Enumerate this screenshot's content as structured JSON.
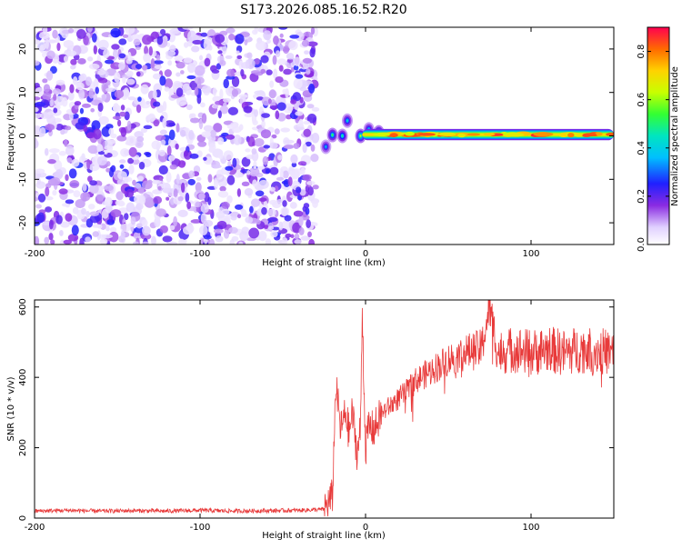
{
  "title": "S173.2026.085.16.52.R20",
  "chart_data": [
    {
      "type": "heatmap",
      "name": "spectrogram",
      "xlabel": "Height of straight line (km)",
      "ylabel": "Frequency (Hz)",
      "xlim": [
        -200,
        150
      ],
      "ylim": [
        -25,
        25
      ],
      "xticks": [
        -200,
        -100,
        0,
        100
      ],
      "xtick_labels": [
        "-200",
        "-100",
        "0",
        "100"
      ],
      "yticks": [
        -20,
        -10,
        0,
        10,
        20
      ],
      "ytick_labels": [
        "-20",
        "-10",
        "0",
        "10",
        "20"
      ],
      "noise_region_x": [
        -200,
        -30
      ],
      "transition_blobs": [
        {
          "x": -24,
          "y": -2.5,
          "amp": 0.35
        },
        {
          "x": -20,
          "y": 0.2,
          "amp": 0.5
        },
        {
          "x": -14,
          "y": 0.0,
          "amp": 0.45
        },
        {
          "x": -11,
          "y": 3.5,
          "amp": 0.4
        },
        {
          "x": -3,
          "y": 0.0,
          "amp": 0.6
        },
        {
          "x": 2,
          "y": 1.5,
          "amp": 0.4
        },
        {
          "x": 8,
          "y": 0.8,
          "amp": 0.55
        }
      ],
      "signal_band": {
        "x_start": -2,
        "x_end": 150,
        "center_hz": 0.3,
        "half_width_hz": 1.3,
        "amp": 0.9
      },
      "colorbar": {
        "label": "Normalized spectral amplitude",
        "range": [
          0.0,
          0.9
        ],
        "ticks": [
          0.0,
          0.2,
          0.4,
          0.6,
          0.8
        ],
        "tick_labels": [
          "0.0",
          "0.2",
          "0.4",
          "0.6",
          "0.8"
        ]
      }
    },
    {
      "type": "line",
      "name": "snr",
      "xlabel": "Height of straight line (km)",
      "ylabel": "SNR (10 * v/v)",
      "xlim": [
        -200,
        150
      ],
      "ylim": [
        0,
        620
      ],
      "xticks": [
        -200,
        -100,
        0,
        100
      ],
      "xtick_labels": [
        "-200",
        "-100",
        "0",
        "100"
      ],
      "yticks": [
        0,
        200,
        400,
        600
      ],
      "ytick_labels": [
        "0",
        "200",
        "400",
        "600"
      ],
      "color": "#e83a3a",
      "series": [
        {
          "name": "SNR",
          "x": [
            -200,
            -180,
            -160,
            -140,
            -120,
            -100,
            -80,
            -60,
            -40,
            -25,
            -20,
            -18,
            -15,
            -12,
            -10,
            -8,
            -5,
            -3,
            -2,
            0,
            2,
            5,
            10,
            15,
            20,
            25,
            30,
            40,
            50,
            60,
            70,
            75,
            80,
            90,
            100,
            110,
            120,
            130,
            140,
            150
          ],
          "values": [
            20,
            22,
            20,
            21,
            20,
            22,
            20,
            21,
            22,
            25,
            60,
            380,
            250,
            300,
            240,
            300,
            180,
            260,
            590,
            200,
            260,
            250,
            300,
            320,
            340,
            360,
            390,
            420,
            450,
            470,
            480,
            600,
            470,
            480,
            470,
            480,
            470,
            480,
            475,
            470
          ]
        }
      ]
    }
  ]
}
